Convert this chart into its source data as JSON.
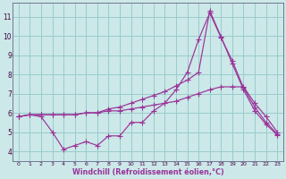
{
  "bg_color": "#cce8e8",
  "line_color": "#993399",
  "grid_color": "#99cccc",
  "xlabel": "Windchill (Refroidissement éolien,°C)",
  "xlim": [
    -0.5,
    23.5
  ],
  "ylim": [
    3.5,
    11.7
  ],
  "yticks": [
    4,
    5,
    6,
    7,
    8,
    9,
    10,
    11
  ],
  "xticks": [
    0,
    1,
    2,
    3,
    4,
    5,
    6,
    7,
    8,
    9,
    10,
    11,
    12,
    13,
    14,
    15,
    16,
    17,
    18,
    19,
    20,
    21,
    22,
    23
  ],
  "series1_x": [
    0,
    1,
    2,
    3,
    4,
    5,
    6,
    7,
    8,
    9,
    10,
    11,
    12,
    13,
    14,
    15,
    16,
    17,
    18,
    19,
    20,
    21,
    22,
    23
  ],
  "series1_y": [
    5.8,
    5.9,
    5.8,
    5.0,
    4.1,
    4.3,
    4.5,
    4.3,
    4.8,
    4.8,
    5.5,
    5.5,
    6.1,
    6.5,
    7.2,
    8.1,
    9.8,
    11.2,
    9.9,
    8.7,
    7.3,
    6.3,
    5.5,
    4.9
  ],
  "series2_x": [
    0,
    1,
    2,
    3,
    4,
    5,
    6,
    7,
    8,
    9,
    10,
    11,
    12,
    13,
    14,
    15,
    16,
    17,
    18,
    19,
    20,
    21,
    22,
    23
  ],
  "series2_y": [
    5.8,
    5.9,
    5.9,
    5.9,
    5.9,
    5.9,
    6.0,
    6.0,
    6.1,
    6.1,
    6.2,
    6.3,
    6.4,
    6.5,
    6.6,
    6.8,
    7.0,
    7.2,
    7.35,
    7.35,
    7.35,
    6.5,
    5.8,
    5.0
  ],
  "series3_x": [
    0,
    1,
    2,
    3,
    4,
    5,
    6,
    7,
    8,
    9,
    10,
    11,
    12,
    13,
    14,
    15,
    16,
    17,
    18,
    19,
    20,
    21,
    22,
    23
  ],
  "series3_y": [
    5.8,
    5.9,
    5.9,
    5.9,
    5.9,
    5.9,
    6.0,
    6.0,
    6.2,
    6.3,
    6.5,
    6.7,
    6.9,
    7.1,
    7.4,
    7.7,
    8.1,
    11.3,
    9.95,
    8.55,
    7.2,
    6.1,
    5.4,
    4.85
  ]
}
